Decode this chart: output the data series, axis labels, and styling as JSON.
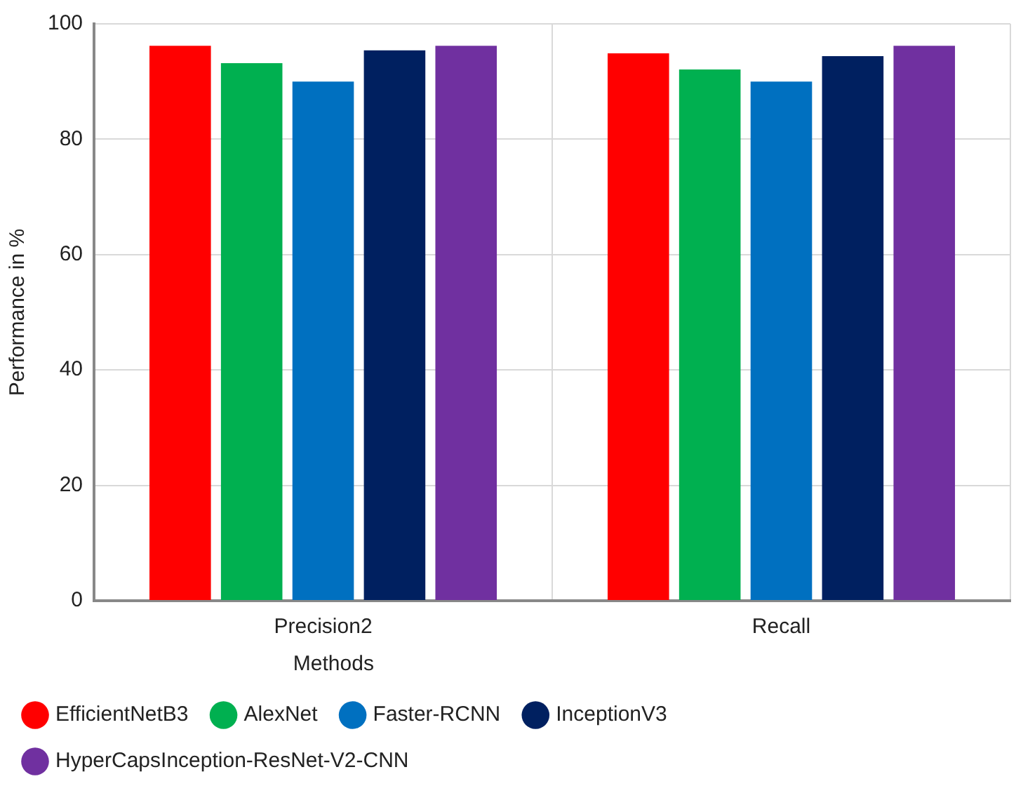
{
  "chart_data": {
    "type": "bar",
    "xlabel": "Methods",
    "ylabel": "Performance in %",
    "categories": [
      "Precision2",
      "Recall"
    ],
    "series": [
      {
        "name": "EfficientNetB3",
        "color": "#ff0000",
        "values": [
          96.2,
          94.9
        ]
      },
      {
        "name": "AlexNet",
        "color": "#00b050",
        "values": [
          93.2,
          92.1
        ]
      },
      {
        "name": "Faster-RCNN",
        "color": "#0070c0",
        "values": [
          90,
          90
        ]
      },
      {
        "name": "InceptionV3",
        "color": "#002060",
        "values": [
          95.4,
          94.4
        ]
      },
      {
        "name": "HyperCapsInception-ResNet-V2-CNN",
        "color": "#7030a0",
        "values": [
          96.2,
          96.2
        ]
      }
    ],
    "ylim": [
      0,
      100
    ],
    "yticks": [
      0,
      20,
      40,
      60,
      80,
      100
    ],
    "grid": true,
    "legend": "bottom"
  }
}
